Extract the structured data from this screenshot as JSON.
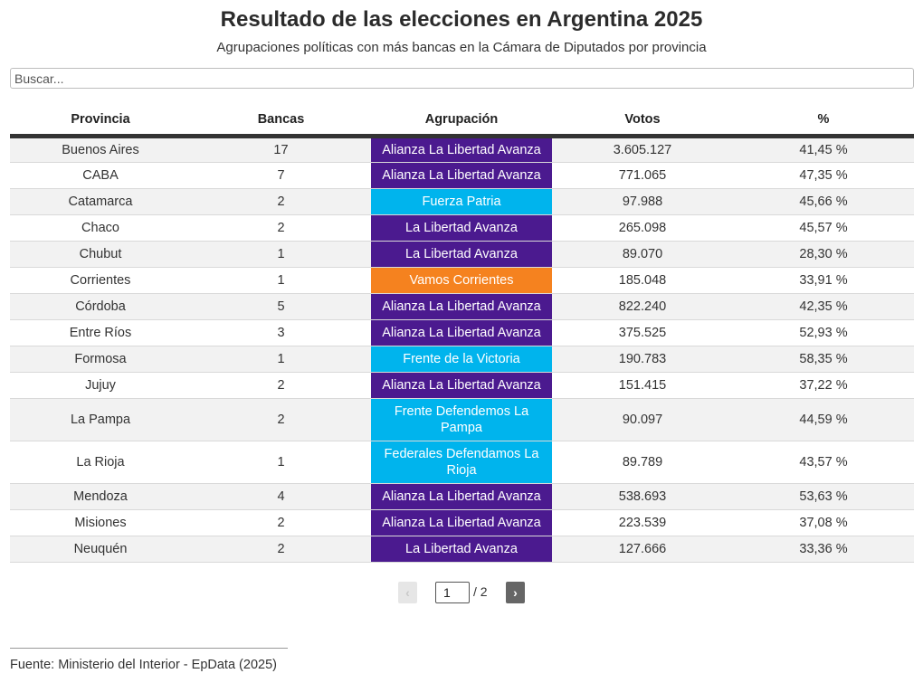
{
  "title": "Resultado de las elecciones en Argentina 2025",
  "subtitle": "Agrupaciones políticas con más bancas en la Cámara de Diputados por provincia",
  "search": {
    "placeholder": "Buscar...",
    "value": ""
  },
  "colors": {
    "header_rule": "#333333",
    "row_odd": "#f2f2f2",
    "row_even": "#ffffff",
    "parties": {
      "Alianza La Libertad Avanza": "#4b1a8f",
      "La Libertad Avanza": "#4b1a8f",
      "Fuerza Patria": "#00b4ed",
      "Frente de la Victoria": "#00b4ed",
      "Frente Defendemos La Pampa": "#00b4ed",
      "Federales Defendamos La Rioja": "#00b4ed",
      "Vamos Corrientes": "#f5821f"
    }
  },
  "chart_data": {
    "type": "table",
    "columns": [
      "Provincia",
      "Bancas",
      "Agrupación",
      "Votos",
      "%"
    ],
    "rows": [
      {
        "provincia": "Buenos Aires",
        "bancas": "17",
        "agrupacion": "Alianza La Libertad Avanza",
        "votos": "3.605.127",
        "pct": "41,45 %"
      },
      {
        "provincia": "CABA",
        "bancas": "7",
        "agrupacion": "Alianza La Libertad Avanza",
        "votos": "771.065",
        "pct": "47,35 %"
      },
      {
        "provincia": "Catamarca",
        "bancas": "2",
        "agrupacion": "Fuerza Patria",
        "votos": "97.988",
        "pct": "45,66 %"
      },
      {
        "provincia": "Chaco",
        "bancas": "2",
        "agrupacion": "La Libertad Avanza",
        "votos": "265.098",
        "pct": "45,57 %"
      },
      {
        "provincia": "Chubut",
        "bancas": "1",
        "agrupacion": "La Libertad Avanza",
        "votos": "89.070",
        "pct": "28,30 %"
      },
      {
        "provincia": "Corrientes",
        "bancas": "1",
        "agrupacion": "Vamos Corrientes",
        "votos": "185.048",
        "pct": "33,91 %"
      },
      {
        "provincia": "Córdoba",
        "bancas": "5",
        "agrupacion": "Alianza La Libertad Avanza",
        "votos": "822.240",
        "pct": "42,35 %"
      },
      {
        "provincia": "Entre Ríos",
        "bancas": "3",
        "agrupacion": "Alianza La Libertad Avanza",
        "votos": "375.525",
        "pct": "52,93 %"
      },
      {
        "provincia": "Formosa",
        "bancas": "1",
        "agrupacion": "Frente de la Victoria",
        "votos": "190.783",
        "pct": "58,35 %"
      },
      {
        "provincia": "Jujuy",
        "bancas": "2",
        "agrupacion": "Alianza La Libertad Avanza",
        "votos": "151.415",
        "pct": "37,22 %"
      },
      {
        "provincia": "La Pampa",
        "bancas": "2",
        "agrupacion": "Frente Defendemos La Pampa",
        "votos": "90.097",
        "pct": "44,59 %"
      },
      {
        "provincia": "La Rioja",
        "bancas": "1",
        "agrupacion": "Federales Defendamos La Rioja",
        "votos": "89.789",
        "pct": "43,57 %"
      },
      {
        "provincia": "Mendoza",
        "bancas": "4",
        "agrupacion": "Alianza La Libertad Avanza",
        "votos": "538.693",
        "pct": "53,63 %"
      },
      {
        "provincia": "Misiones",
        "bancas": "2",
        "agrupacion": "Alianza La Libertad Avanza",
        "votos": "223.539",
        "pct": "37,08 %"
      },
      {
        "provincia": "Neuquén",
        "bancas": "2",
        "agrupacion": "La Libertad Avanza",
        "votos": "127.666",
        "pct": "33,36 %"
      }
    ]
  },
  "pagination": {
    "prev_label": "‹",
    "next_label": "›",
    "current_page": "1",
    "total_label": "/ 2"
  },
  "source": "Fuente: Ministerio del Interior - EpData (2025)"
}
